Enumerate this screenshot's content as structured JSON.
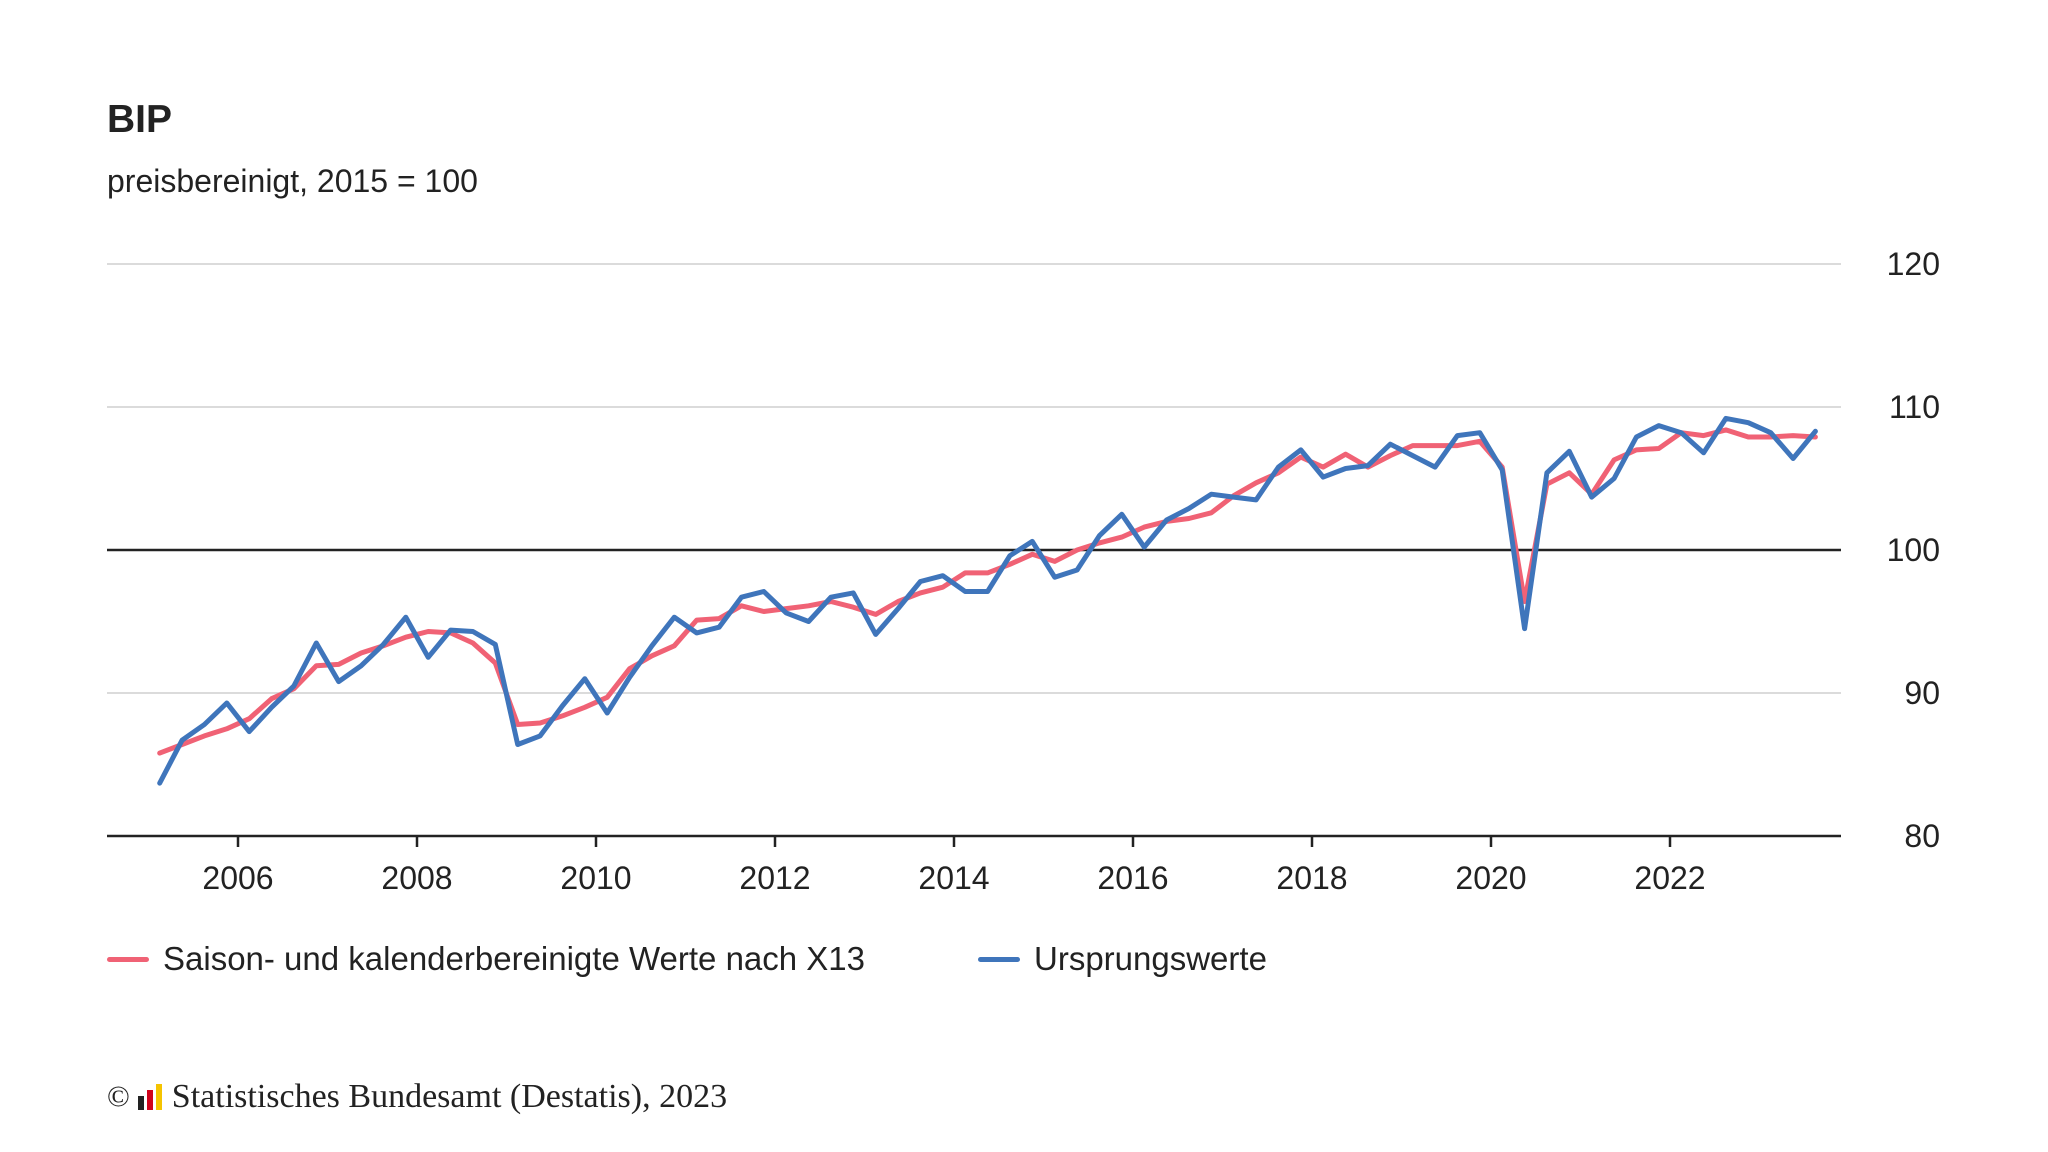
{
  "chart_data": {
    "type": "line",
    "title": "BIP",
    "subtitle": "preisbereinigt, 2015 = 100",
    "xlabel": "",
    "ylabel": "",
    "ylim": [
      80,
      120
    ],
    "yticks": [
      80,
      90,
      100,
      110,
      120
    ],
    "xticks": [
      "2006",
      "2008",
      "2010",
      "2012",
      "2014",
      "2016",
      "2018",
      "2020",
      "2022"
    ],
    "reference_line": 100,
    "grid": true,
    "legend_position": "bottom",
    "x_start": "2005-Q1",
    "x_end": "2023-Q3",
    "frequency": "quarterly",
    "series": [
      {
        "name": "Saison- und kalenderbereinigte Werte nach X13",
        "color": "#f06275",
        "values": [
          85.8,
          86.4,
          87.0,
          87.5,
          88.2,
          89.6,
          90.3,
          91.9,
          92.0,
          92.8,
          93.3,
          93.9,
          94.3,
          94.2,
          93.5,
          92.1,
          87.8,
          87.9,
          88.4,
          89.0,
          89.7,
          91.7,
          92.6,
          93.3,
          95.1,
          95.2,
          96.1,
          95.7,
          95.9,
          96.1,
          96.4,
          96.0,
          95.5,
          96.4,
          97.0,
          97.4,
          98.4,
          98.4,
          99.0,
          99.7,
          99.2,
          100.0,
          100.5,
          100.9,
          101.6,
          102.0,
          102.2,
          102.6,
          103.8,
          104.7,
          105.4,
          106.5,
          105.8,
          106.7,
          105.8,
          106.6,
          107.3,
          107.3,
          107.3,
          107.6,
          105.8,
          96.4,
          104.6,
          105.4,
          103.9,
          106.3,
          107.0,
          107.1,
          108.2,
          108.0,
          108.4,
          107.9,
          107.9,
          108.0,
          107.9
        ]
      },
      {
        "name": "Ursprungswerte",
        "color": "#3f75bb",
        "values": [
          83.7,
          86.7,
          87.8,
          89.3,
          87.3,
          89.0,
          90.5,
          93.5,
          90.8,
          91.9,
          93.4,
          95.3,
          92.5,
          94.4,
          94.3,
          93.4,
          86.4,
          87.0,
          89.1,
          91.0,
          88.6,
          91.1,
          93.3,
          95.3,
          94.2,
          94.6,
          96.7,
          97.1,
          95.6,
          95.0,
          96.7,
          97.0,
          94.1,
          95.9,
          97.8,
          98.2,
          97.1,
          97.1,
          99.6,
          100.6,
          98.1,
          98.6,
          101.0,
          102.5,
          100.2,
          102.1,
          102.9,
          103.9,
          103.7,
          103.5,
          105.8,
          107.0,
          105.1,
          105.7,
          105.9,
          107.4,
          106.6,
          105.8,
          108.0,
          108.2,
          105.6,
          94.5,
          105.4,
          106.9,
          103.7,
          105.0,
          107.9,
          108.7,
          108.2,
          106.8,
          109.2,
          108.9,
          108.2,
          106.4,
          108.3
        ]
      }
    ]
  },
  "footer": {
    "copyright_symbol": "©",
    "text": "Statistisches Bundesamt (Destatis), 2023",
    "logo_colors": [
      "#222222",
      "#d0021b",
      "#f5c400"
    ]
  }
}
